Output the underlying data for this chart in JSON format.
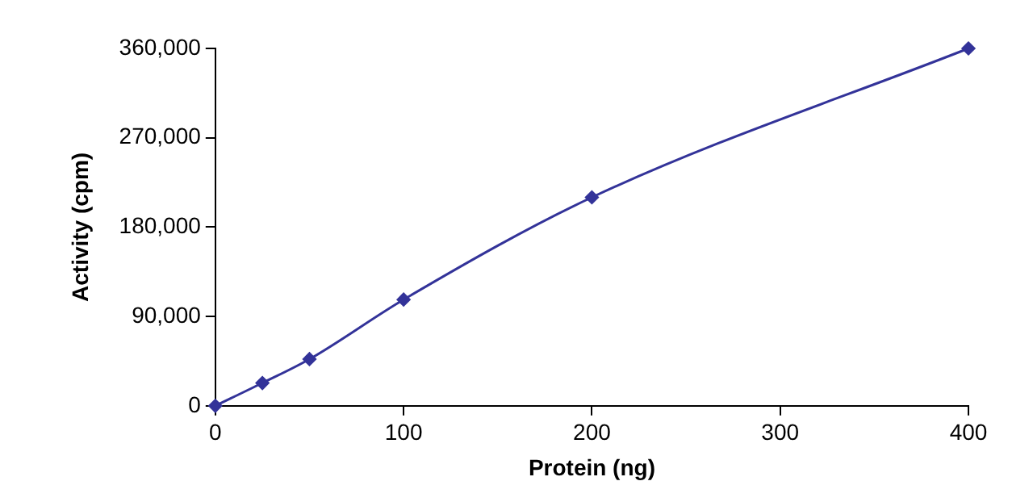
{
  "chart_data": {
    "type": "line",
    "xlabel": "Protein (ng)",
    "ylabel": "Activity (cpm)",
    "x": [
      0,
      25,
      50,
      100,
      200,
      400
    ],
    "series": [
      {
        "color": "#333399",
        "values": [
          0,
          23000,
          47000,
          107000,
          210000,
          360000
        ]
      }
    ],
    "xlim": [
      0,
      400
    ],
    "xticks": [
      0,
      100,
      200,
      300,
      400
    ],
    "ylim": [
      0,
      360000
    ],
    "yticks": [
      0,
      {
        "value": 90000,
        "label": "90,000"
      },
      {
        "value": 180000,
        "label": "180,000"
      },
      {
        "value": 270000,
        "label": "270,000"
      },
      {
        "value": 360000,
        "label": "360,000"
      }
    ],
    "grid": false,
    "legend": false,
    "marker": "diamond",
    "line_style": "solid"
  }
}
